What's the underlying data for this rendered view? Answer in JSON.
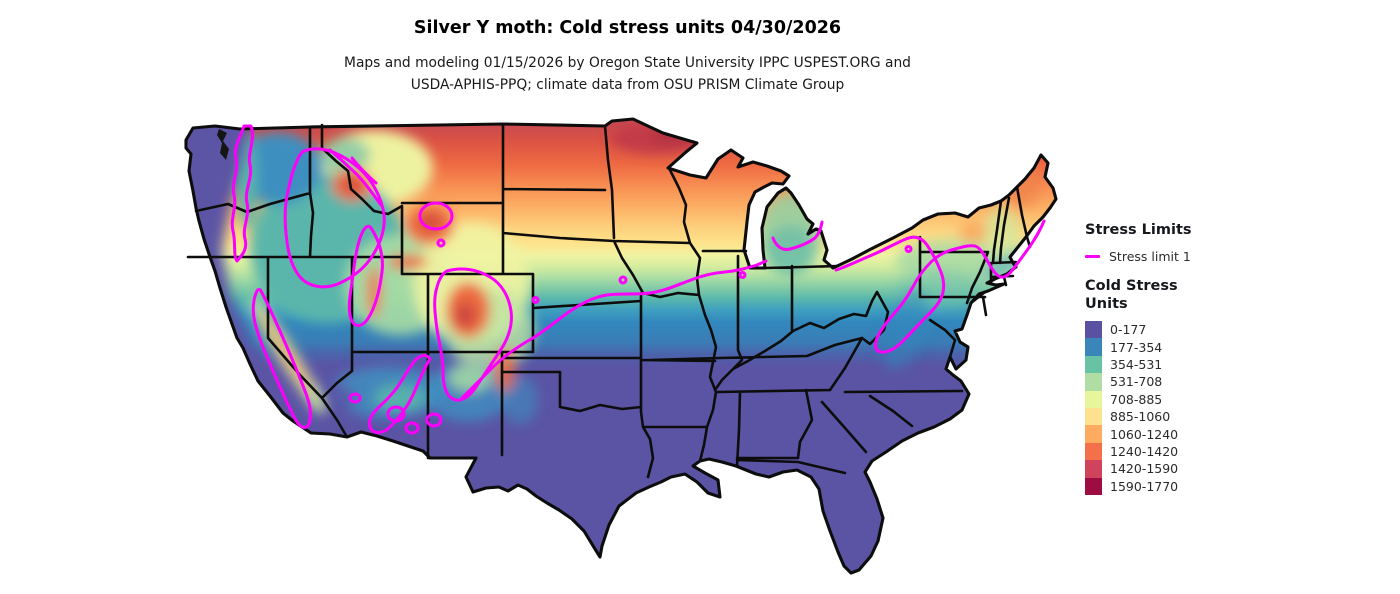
{
  "header": {
    "title": "Silver Y moth: Cold stress units 04/30/2026",
    "subtitle_line1": "Maps and modeling 01/15/2026 by Oregon State University IPPC USPEST.ORG and",
    "subtitle_line2": "USDA-APHIS-PPQ; climate data from OSU PRISM Climate Group"
  },
  "legend": {
    "stress_limits_heading": "Stress Limits",
    "stress_limit_items": [
      {
        "label": "Stress limit 1",
        "color": "#fb00fb"
      }
    ],
    "cold_stress_heading_line1": "Cold Stress",
    "cold_stress_heading_line2": "Units",
    "classes": [
      {
        "label": "0-177",
        "color": "#5b51a3"
      },
      {
        "label": "177-354",
        "color": "#3a86bb"
      },
      {
        "label": "354-531",
        "color": "#68c3a5"
      },
      {
        "label": "531-708",
        "color": "#afdda3"
      },
      {
        "label": "708-885",
        "color": "#e7f59b"
      },
      {
        "label": "885-1060",
        "color": "#fee18e"
      },
      {
        "label": "1060-1240",
        "color": "#fcab60"
      },
      {
        "label": "1240-1420",
        "color": "#f3704b"
      },
      {
        "label": "1420-1590",
        "color": "#d0435c"
      },
      {
        "label": "1590-1770",
        "color": "#9d0d42"
      }
    ]
  },
  "map": {
    "stress_limit_line_color": "#fb00fb",
    "state_border_color": "#0d0d0d"
  }
}
